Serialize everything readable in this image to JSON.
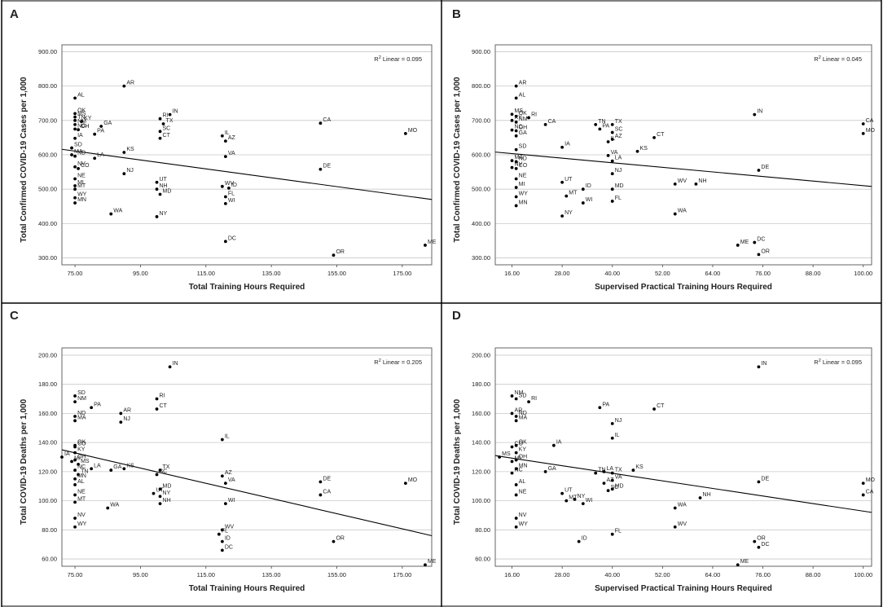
{
  "chart_data": [
    {
      "type": "scatter",
      "panel_label": "A",
      "xlabel": "Total Training Hours Required",
      "ylabel": "Total Confirmed COVID-19 Cases per 1,000",
      "x_ticks": [
        "75.00",
        "95.00",
        "115.00",
        "135.00",
        "155.00",
        "175.00"
      ],
      "y_ticks": [
        "300.00",
        "400.00",
        "500.00",
        "600.00",
        "700.00",
        "800.00",
        "900.00"
      ],
      "xlim": [
        71,
        184
      ],
      "ylim": [
        280,
        920
      ],
      "r2_prefix": "R",
      "r2_sup": "2",
      "r2_text": " Linear = 0.095",
      "fit_line": [
        [
          71,
          616
        ],
        [
          184,
          470
        ]
      ],
      "points": [
        {
          "label": "AR",
          "x": 90,
          "y": 800
        },
        {
          "label": "AL",
          "x": 75,
          "y": 765
        },
        {
          "label": "OK",
          "x": 75,
          "y": 720
        },
        {
          "label": "MS",
          "x": 75,
          "y": 710
        },
        {
          "label": "TN",
          "x": 75,
          "y": 700
        },
        {
          "label": "KY",
          "x": 77,
          "y": 697
        },
        {
          "label": "NM",
          "x": 75,
          "y": 688
        },
        {
          "label": "NC",
          "x": 75,
          "y": 675
        },
        {
          "label": "OH",
          "x": 76,
          "y": 673
        },
        {
          "label": "GA",
          "x": 83,
          "y": 683
        },
        {
          "label": "PA",
          "x": 81,
          "y": 660
        },
        {
          "label": "IA",
          "x": 75,
          "y": 648
        },
        {
          "label": "SD",
          "x": 74,
          "y": 620
        },
        {
          "label": "MA",
          "x": 74,
          "y": 600
        },
        {
          "label": "ND",
          "x": 75,
          "y": 596
        },
        {
          "label": "LA",
          "x": 81,
          "y": 590
        },
        {
          "label": "NV",
          "x": 75,
          "y": 565
        },
        {
          "label": "CO",
          "x": 76,
          "y": 560
        },
        {
          "label": "KS",
          "x": 90,
          "y": 607
        },
        {
          "label": "NJ",
          "x": 90,
          "y": 545
        },
        {
          "label": "NE",
          "x": 75,
          "y": 530
        },
        {
          "label": "MI",
          "x": 75,
          "y": 510
        },
        {
          "label": "MT",
          "x": 75,
          "y": 500
        },
        {
          "label": "WY",
          "x": 75,
          "y": 475
        },
        {
          "label": "MN",
          "x": 75,
          "y": 460
        },
        {
          "label": "WA",
          "x": 86,
          "y": 428
        },
        {
          "label": "RI",
          "x": 101,
          "y": 705
        },
        {
          "label": "IN",
          "x": 104,
          "y": 717
        },
        {
          "label": "TX",
          "x": 102,
          "y": 690
        },
        {
          "label": "SC",
          "x": 101,
          "y": 668
        },
        {
          "label": "CT",
          "x": 101,
          "y": 648
        },
        {
          "label": "UT",
          "x": 100,
          "y": 520
        },
        {
          "label": "NH",
          "x": 100,
          "y": 500
        },
        {
          "label": "MD",
          "x": 101,
          "y": 485
        },
        {
          "label": "NY",
          "x": 100,
          "y": 420
        },
        {
          "label": "IL",
          "x": 120,
          "y": 655
        },
        {
          "label": "AZ",
          "x": 121,
          "y": 640
        },
        {
          "label": "VA",
          "x": 121,
          "y": 595
        },
        {
          "label": "WV",
          "x": 120,
          "y": 508
        },
        {
          "label": "ID",
          "x": 122,
          "y": 503
        },
        {
          "label": "FL",
          "x": 121,
          "y": 478
        },
        {
          "label": "WI",
          "x": 121,
          "y": 458
        },
        {
          "label": "DC",
          "x": 121,
          "y": 348
        },
        {
          "label": "CA",
          "x": 150,
          "y": 692
        },
        {
          "label": "DE",
          "x": 150,
          "y": 558
        },
        {
          "label": "OR",
          "x": 154,
          "y": 308
        },
        {
          "label": "MO",
          "x": 176,
          "y": 662
        },
        {
          "label": "ME",
          "x": 182,
          "y": 337
        }
      ]
    },
    {
      "type": "scatter",
      "panel_label": "B",
      "xlabel": "Supervised Practical Training Hours Required",
      "ylabel": "Total Confirmed COVID-19 Cases per 1,000",
      "x_ticks": [
        "16.00",
        "28.00",
        "40.00",
        "52.00",
        "64.00",
        "76.00",
        "88.00",
        "100.00"
      ],
      "y_ticks": [
        "300.00",
        "400.00",
        "500.00",
        "600.00",
        "700.00",
        "800.00",
        "900.00"
      ],
      "xlim": [
        12,
        102
      ],
      "ylim": [
        280,
        920
      ],
      "r2_prefix": "R",
      "r2_sup": "2",
      "r2_text": " Linear = 0.045",
      "fit_line": [
        [
          12,
          608
        ],
        [
          102,
          508
        ]
      ],
      "points": [
        {
          "label": "AR",
          "x": 17,
          "y": 800
        },
        {
          "label": "AL",
          "x": 17,
          "y": 765
        },
        {
          "label": "MS",
          "x": 16,
          "y": 718
        },
        {
          "label": "OK",
          "x": 17,
          "y": 712
        },
        {
          "label": "RI",
          "x": 20,
          "y": 708
        },
        {
          "label": "KY",
          "x": 16,
          "y": 700
        },
        {
          "label": "NM",
          "x": 17,
          "y": 695
        },
        {
          "label": "CA",
          "x": 24,
          "y": 688
        },
        {
          "label": "NC",
          "x": 16,
          "y": 672
        },
        {
          "label": "OH",
          "x": 17,
          "y": 670
        },
        {
          "label": "GA",
          "x": 17,
          "y": 655
        },
        {
          "label": "TN",
          "x": 36,
          "y": 688
        },
        {
          "label": "TX",
          "x": 40,
          "y": 688
        },
        {
          "label": "PA",
          "x": 37,
          "y": 675
        },
        {
          "label": "SC",
          "x": 40,
          "y": 665
        },
        {
          "label": "IL",
          "x": 39,
          "y": 638
        },
        {
          "label": "AZ",
          "x": 40,
          "y": 645
        },
        {
          "label": "IA",
          "x": 28,
          "y": 622
        },
        {
          "label": "CT",
          "x": 50,
          "y": 650
        },
        {
          "label": "KS",
          "x": 46,
          "y": 610
        },
        {
          "label": "SD",
          "x": 17,
          "y": 615
        },
        {
          "label": "VA",
          "x": 39,
          "y": 598
        },
        {
          "label": "LA",
          "x": 40,
          "y": 582
        },
        {
          "label": "MA",
          "x": 16,
          "y": 583
        },
        {
          "label": "ND",
          "x": 17,
          "y": 580
        },
        {
          "label": "NV",
          "x": 16,
          "y": 563
        },
        {
          "label": "CO",
          "x": 17,
          "y": 560
        },
        {
          "label": "NJ",
          "x": 40,
          "y": 545
        },
        {
          "label": "NE",
          "x": 17,
          "y": 530
        },
        {
          "label": "UT",
          "x": 28,
          "y": 520
        },
        {
          "label": "ID",
          "x": 33,
          "y": 500
        },
        {
          "label": "MI",
          "x": 17,
          "y": 505
        },
        {
          "label": "MT",
          "x": 29,
          "y": 480
        },
        {
          "label": "WI",
          "x": 33,
          "y": 460
        },
        {
          "label": "WY",
          "x": 17,
          "y": 478
        },
        {
          "label": "MN",
          "x": 17,
          "y": 452
        },
        {
          "label": "NY",
          "x": 28,
          "y": 422
        },
        {
          "label": "MD",
          "x": 40,
          "y": 500
        },
        {
          "label": "FL",
          "x": 40,
          "y": 465
        },
        {
          "label": "WV",
          "x": 55,
          "y": 515
        },
        {
          "label": "NH",
          "x": 60,
          "y": 515
        },
        {
          "label": "WA",
          "x": 55,
          "y": 428
        },
        {
          "label": "IN",
          "x": 74,
          "y": 717
        },
        {
          "label": "DE",
          "x": 75,
          "y": 555
        },
        {
          "label": "ME",
          "x": 70,
          "y": 337
        },
        {
          "label": "DC",
          "x": 74,
          "y": 345
        },
        {
          "label": "OR",
          "x": 75,
          "y": 310
        },
        {
          "label": "CA",
          "x": 100,
          "y": 690
        },
        {
          "label": "MO",
          "x": 100,
          "y": 662
        }
      ]
    },
    {
      "type": "scatter",
      "panel_label": "C",
      "xlabel": "Total Training Hours Required",
      "ylabel": "Total COVID-19 Deaths per 1,000",
      "x_ticks": [
        "75.00",
        "95.00",
        "115.00",
        "135.00",
        "155.00",
        "175.00"
      ],
      "y_ticks": [
        "60.00",
        "80.00",
        "100.00",
        "120.00",
        "140.00",
        "160.00",
        "180.00",
        "200.00"
      ],
      "xlim": [
        71,
        184
      ],
      "ylim": [
        55,
        205
      ],
      "r2_prefix": "R",
      "r2_sup": "2",
      "r2_text": " Linear = 0.205",
      "fit_line": [
        [
          71,
          135
        ],
        [
          184,
          76
        ]
      ],
      "points": [
        {
          "label": "IN",
          "x": 104,
          "y": 192
        },
        {
          "label": "SD",
          "x": 75,
          "y": 172
        },
        {
          "label": "NM",
          "x": 75,
          "y": 168
        },
        {
          "label": "PA",
          "x": 80,
          "y": 164
        },
        {
          "label": "RI",
          "x": 100,
          "y": 170
        },
        {
          "label": "CT",
          "x": 100,
          "y": 163
        },
        {
          "label": "AR",
          "x": 89,
          "y": 160
        },
        {
          "label": "NJ",
          "x": 89,
          "y": 154
        },
        {
          "label": "ND",
          "x": 75,
          "y": 158
        },
        {
          "label": "MA",
          "x": 75,
          "y": 155
        },
        {
          "label": "IL",
          "x": 120,
          "y": 142
        },
        {
          "label": "CO",
          "x": 75,
          "y": 137
        },
        {
          "label": "OK",
          "x": 75,
          "y": 138
        },
        {
          "label": "KY",
          "x": 75,
          "y": 133
        },
        {
          "label": "IA",
          "x": 71,
          "y": 130
        },
        {
          "label": "OH",
          "x": 75,
          "y": 128
        },
        {
          "label": "MS",
          "x": 76,
          "y": 125
        },
        {
          "label": "MI",
          "x": 74,
          "y": 127
        },
        {
          "label": "GA",
          "x": 86,
          "y": 121
        },
        {
          "label": "KS",
          "x": 90,
          "y": 122
        },
        {
          "label": "LA",
          "x": 80,
          "y": 122
        },
        {
          "label": "NC",
          "x": 75,
          "y": 121
        },
        {
          "label": "TN",
          "x": 76,
          "y": 118
        },
        {
          "label": "MN",
          "x": 75,
          "y": 115
        },
        {
          "label": "AL",
          "x": 75,
          "y": 111
        },
        {
          "label": "SC",
          "x": 100,
          "y": 118
        },
        {
          "label": "TX",
          "x": 101,
          "y": 121
        },
        {
          "label": "AZ",
          "x": 120,
          "y": 117
        },
        {
          "label": "VA",
          "x": 121,
          "y": 112
        },
        {
          "label": "UT",
          "x": 99,
          "y": 105
        },
        {
          "label": "MD",
          "x": 101,
          "y": 108
        },
        {
          "label": "NY",
          "x": 101,
          "y": 103
        },
        {
          "label": "NH",
          "x": 101,
          "y": 98
        },
        {
          "label": "WI",
          "x": 121,
          "y": 98
        },
        {
          "label": "NE",
          "x": 75,
          "y": 104
        },
        {
          "label": "MT",
          "x": 75,
          "y": 99
        },
        {
          "label": "WA",
          "x": 85,
          "y": 95
        },
        {
          "label": "NV",
          "x": 75,
          "y": 88
        },
        {
          "label": "WY",
          "x": 75,
          "y": 82
        },
        {
          "label": "WV",
          "x": 120,
          "y": 80
        },
        {
          "label": "FL",
          "x": 119,
          "y": 77
        },
        {
          "label": "ID",
          "x": 120,
          "y": 72
        },
        {
          "label": "DC",
          "x": 120,
          "y": 66
        },
        {
          "label": "DE",
          "x": 150,
          "y": 113
        },
        {
          "label": "CA",
          "x": 150,
          "y": 104
        },
        {
          "label": "MO",
          "x": 176,
          "y": 112
        },
        {
          "label": "OR",
          "x": 154,
          "y": 72
        },
        {
          "label": "ME",
          "x": 182,
          "y": 56
        }
      ]
    },
    {
      "type": "scatter",
      "panel_label": "D",
      "xlabel": "Supervised Practical Training Hours Required",
      "ylabel": "Total COVID-19 Deaths per 1,000",
      "x_ticks": [
        "16.00",
        "28.00",
        "40.00",
        "52.00",
        "64.00",
        "76.00",
        "88.00",
        "100.00"
      ],
      "y_ticks": [
        "60.00",
        "80.00",
        "100.00",
        "120.00",
        "140.00",
        "160.00",
        "180.00",
        "200.00"
      ],
      "xlim": [
        12,
        102
      ],
      "ylim": [
        55,
        205
      ],
      "r2_prefix": "R",
      "r2_sup": "2",
      "r2_text": " Linear = 0.095",
      "fit_line": [
        [
          12,
          131
        ],
        [
          102,
          92
        ]
      ],
      "points": [
        {
          "label": "IN",
          "x": 75,
          "y": 192
        },
        {
          "label": "NM",
          "x": 16,
          "y": 172
        },
        {
          "label": "SD",
          "x": 17,
          "y": 170
        },
        {
          "label": "RI",
          "x": 20,
          "y": 168
        },
        {
          "label": "PA",
          "x": 37,
          "y": 164
        },
        {
          "label": "CT",
          "x": 50,
          "y": 163
        },
        {
          "label": "AR",
          "x": 16,
          "y": 160
        },
        {
          "label": "ND",
          "x": 17,
          "y": 158
        },
        {
          "label": "MA",
          "x": 17,
          "y": 155
        },
        {
          "label": "NJ",
          "x": 40,
          "y": 153
        },
        {
          "label": "IL",
          "x": 40,
          "y": 143
        },
        {
          "label": "IA",
          "x": 26,
          "y": 138
        },
        {
          "label": "CO",
          "x": 16,
          "y": 137
        },
        {
          "label": "OK",
          "x": 17,
          "y": 138
        },
        {
          "label": "KY",
          "x": 17,
          "y": 133
        },
        {
          "label": "MS",
          "x": 13,
          "y": 130
        },
        {
          "label": "OH",
          "x": 17,
          "y": 128
        },
        {
          "label": "MI",
          "x": 16,
          "y": 127
        },
        {
          "label": "GA",
          "x": 24,
          "y": 120
        },
        {
          "label": "MN",
          "x": 17,
          "y": 122
        },
        {
          "label": "NC",
          "x": 16,
          "y": 119
        },
        {
          "label": "TN",
          "x": 36,
          "y": 119
        },
        {
          "label": "LA",
          "x": 38,
          "y": 120
        },
        {
          "label": "TX",
          "x": 40,
          "y": 119
        },
        {
          "label": "KS",
          "x": 45,
          "y": 121
        },
        {
          "label": "VA",
          "x": 40,
          "y": 114
        },
        {
          "label": "AZ",
          "x": 38,
          "y": 112
        },
        {
          "label": "SC",
          "x": 39,
          "y": 107
        },
        {
          "label": "MD",
          "x": 40,
          "y": 108
        },
        {
          "label": "AL",
          "x": 17,
          "y": 111
        },
        {
          "label": "UT",
          "x": 28,
          "y": 105
        },
        {
          "label": "NE",
          "x": 17,
          "y": 104
        },
        {
          "label": "MT",
          "x": 29,
          "y": 100
        },
        {
          "label": "NY",
          "x": 31,
          "y": 101
        },
        {
          "label": "WI",
          "x": 33,
          "y": 98
        },
        {
          "label": "NH",
          "x": 61,
          "y": 102
        },
        {
          "label": "WA",
          "x": 55,
          "y": 95
        },
        {
          "label": "WV",
          "x": 55,
          "y": 82
        },
        {
          "label": "NV",
          "x": 17,
          "y": 88
        },
        {
          "label": "WY",
          "x": 17,
          "y": 82
        },
        {
          "label": "FL",
          "x": 40,
          "y": 77
        },
        {
          "label": "ID",
          "x": 32,
          "y": 72
        },
        {
          "label": "OR",
          "x": 74,
          "y": 72
        },
        {
          "label": "DC",
          "x": 75,
          "y": 68
        },
        {
          "label": "ME",
          "x": 70,
          "y": 56
        },
        {
          "label": "DE",
          "x": 75,
          "y": 113
        },
        {
          "label": "MO",
          "x": 100,
          "y": 112
        },
        {
          "label": "CA",
          "x": 100,
          "y": 104
        }
      ]
    }
  ]
}
